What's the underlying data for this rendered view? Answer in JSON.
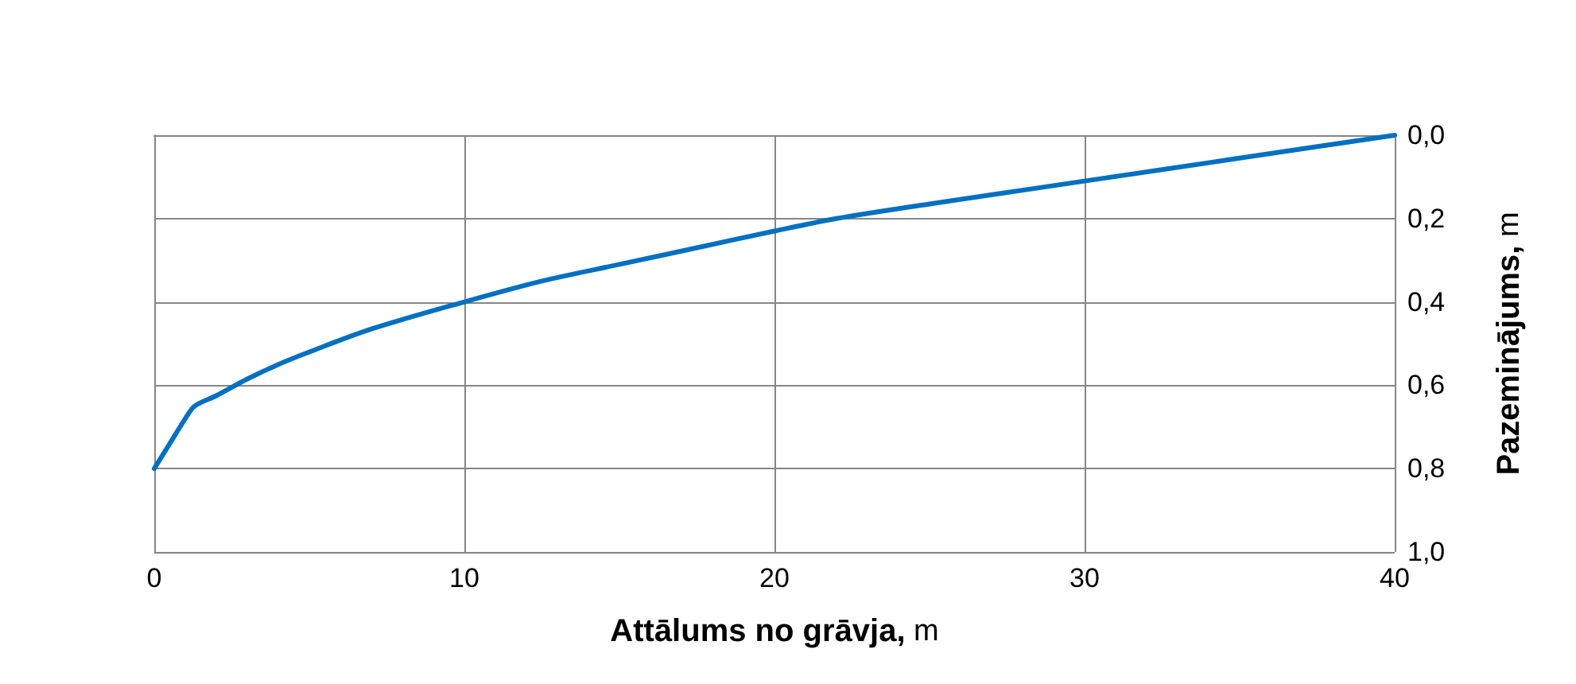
{
  "chart_data": {
    "type": "line",
    "xlabel": "Attālums no grāvja, m",
    "ylabel": "Pazeminājums, m",
    "x": [
      0,
      0.5,
      1,
      1.3,
      2,
      3,
      4,
      5,
      7,
      10,
      12.5,
      15,
      17.5,
      20,
      22,
      25,
      30,
      35,
      40
    ],
    "series": [
      {
        "color": "#0070c0",
        "values": [
          0.8,
          0.74,
          0.68,
          0.65,
          0.625,
          0.585,
          0.55,
          0.52,
          0.465,
          0.4,
          0.35,
          0.31,
          0.27,
          0.23,
          0.2,
          0.165,
          0.11,
          0.055,
          0
        ]
      }
    ],
    "xlim": [
      0,
      40
    ],
    "xticks": [
      0,
      10,
      20,
      30,
      40
    ],
    "ylim": [
      1,
      0
    ],
    "yticks": [
      {
        "value": 0,
        "label": "0,0"
      },
      {
        "value": 0.2,
        "label": "0,2"
      },
      {
        "value": 0.4,
        "label": "0,4"
      },
      {
        "value": 0.6,
        "label": "0,6"
      },
      {
        "value": 0.8,
        "label": "0,8"
      },
      {
        "value": 1,
        "label": "1,0"
      }
    ],
    "grid": true,
    "marker": "none",
    "line_style": "solid"
  }
}
